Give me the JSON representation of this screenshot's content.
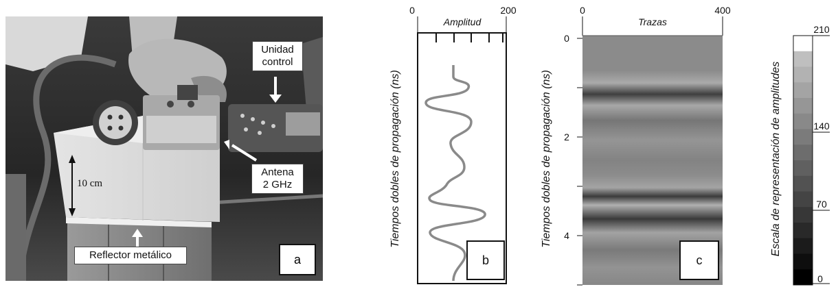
{
  "panel_a": {
    "tag": "a",
    "callouts": {
      "control": [
        "Unidad",
        "control"
      ],
      "antenna": [
        "Antena",
        "2 GHz"
      ],
      "reflector": "Reflector metálico"
    },
    "scale_label": "10 cm"
  },
  "panel_b": {
    "tag": "b",
    "top_label": "Amplitud",
    "x_ticks": [
      "0",
      "200"
    ],
    "y_label": "Tiempos dobles de propagación (ns)"
  },
  "panel_c": {
    "tag": "c",
    "top_label": "Trazas",
    "x_ticks": [
      "0",
      "400"
    ],
    "y_ticks": [
      "0",
      "2",
      "4"
    ],
    "y_label": "Tiempos dobles de propagación (ns)"
  },
  "scale_bar": {
    "label": "Escala de representación de amplitudes",
    "ticks": [
      "210",
      "140",
      "70",
      "0"
    ],
    "levels": 16
  }
}
